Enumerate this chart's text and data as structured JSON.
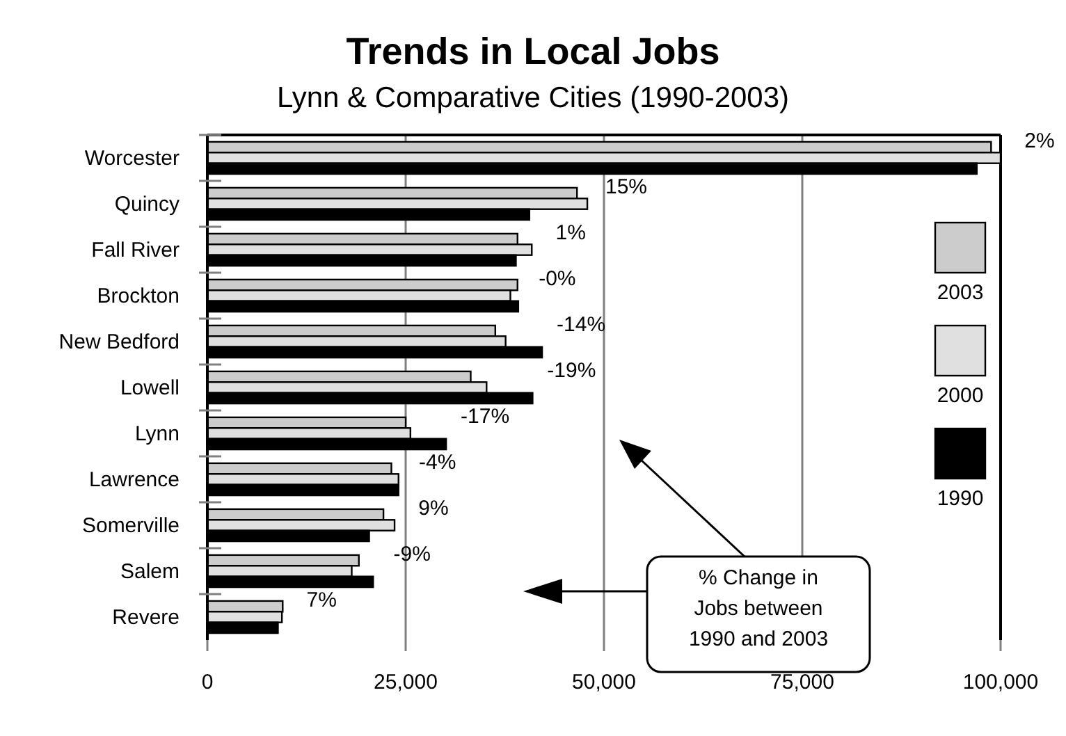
{
  "chart_data": {
    "type": "bar",
    "orientation": "horizontal",
    "title": "Trends in Local Jobs",
    "subtitle": "Lynn & Comparative Cities (1990-2003)",
    "categories": [
      "Worcester",
      "Quincy",
      "Fall River",
      "Brockton",
      "New Bedford",
      "Lowell",
      "Lynn",
      "Lawrence",
      "Somerville",
      "Salem",
      "Revere"
    ],
    "series": [
      {
        "name": "2003",
        "color": "#cccccc",
        "values": [
          98800,
          46600,
          39100,
          39100,
          36300,
          33200,
          25000,
          23200,
          22200,
          19100,
          9500
        ]
      },
      {
        "name": "2000",
        "color": "#e0e0e0",
        "values": [
          100000,
          47900,
          40900,
          38200,
          37600,
          35200,
          25600,
          24100,
          23600,
          18200,
          9400
        ]
      },
      {
        "name": "1990",
        "color": "#000000",
        "values": [
          97000,
          40600,
          38900,
          39200,
          42200,
          41000,
          30100,
          24100,
          20400,
          20900,
          8900
        ]
      }
    ],
    "xlim": [
      0,
      100000
    ],
    "xticks": [
      {
        "value": 0,
        "label": "0"
      },
      {
        "value": 25000,
        "label": "25,000"
      },
      {
        "value": 50000,
        "label": "50,000"
      },
      {
        "value": 75000,
        "label": "75,000"
      },
      {
        "value": 100000,
        "label": "100,000"
      }
    ],
    "grid": "x",
    "legend": "right",
    "annotations": [
      "2%",
      "15%",
      "1%",
      "-0%",
      "-14%",
      "-19%",
      "-17%",
      "-4%",
      "9%",
      "-9%",
      "7%",
      "% Change in Jobs between 1990 and 2003"
    ]
  }
}
